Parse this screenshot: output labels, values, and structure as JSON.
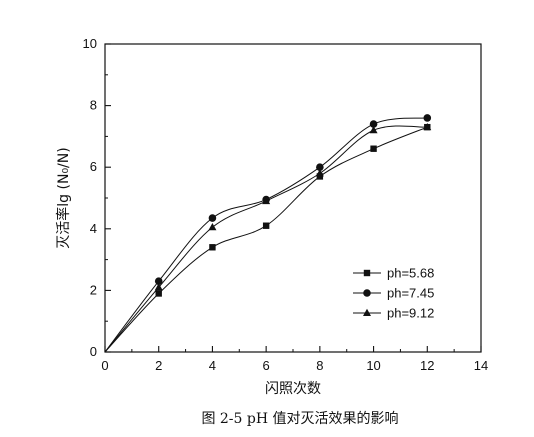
{
  "chart_data": {
    "type": "line",
    "title": "",
    "xlabel": "闪照次数",
    "ylabel": "灭活率lg (N₀/N)",
    "caption": "图 2-5 pH 值对灭活效果的影响",
    "xlim": [
      0,
      14
    ],
    "ylim": [
      0,
      10
    ],
    "x_ticks": [
      0,
      2,
      4,
      6,
      8,
      10,
      12,
      14
    ],
    "y_ticks": [
      0,
      2,
      4,
      6,
      8,
      10
    ],
    "grid": false,
    "legend_position": "bottom-right",
    "x": [
      0,
      2,
      4,
      6,
      8,
      10,
      12
    ],
    "series": [
      {
        "name": "ph=5.68",
        "marker": "square",
        "values": [
          0,
          1.9,
          3.4,
          4.1,
          5.7,
          6.6,
          7.3
        ]
      },
      {
        "name": "ph=7.45",
        "marker": "circle",
        "values": [
          0,
          2.3,
          4.35,
          4.95,
          6.0,
          7.4,
          7.6
        ]
      },
      {
        "name": "ph=9.12",
        "marker": "triangle",
        "values": [
          0,
          2.1,
          4.05,
          4.9,
          5.8,
          7.2,
          7.3
        ]
      }
    ]
  }
}
